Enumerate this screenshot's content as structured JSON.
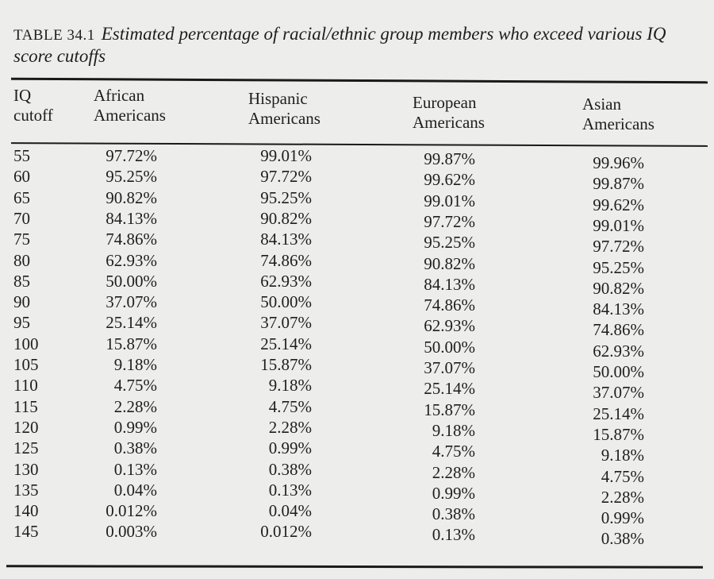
{
  "caption": {
    "label": "TABLE 34.1",
    "title": "Estimated percentage of racial/ethnic group members who exceed various IQ score cutoffs"
  },
  "headers": [
    {
      "line1": "IQ",
      "line2": "cutoff"
    },
    {
      "line1": "African",
      "line2": "Americans"
    },
    {
      "line1": "Hispanic",
      "line2": "Americans"
    },
    {
      "line1": "European",
      "line2": "Americans"
    },
    {
      "line1": "Asian",
      "line2": "Americans"
    }
  ],
  "rows": [
    [
      "55",
      "97.72%",
      "99.01%",
      "99.87%",
      "99.96%"
    ],
    [
      "60",
      "95.25%",
      "97.72%",
      "99.62%",
      "99.87%"
    ],
    [
      "65",
      "90.82%",
      "95.25%",
      "99.01%",
      "99.62%"
    ],
    [
      "70",
      "84.13%",
      "90.82%",
      "97.72%",
      "99.01%"
    ],
    [
      "75",
      "74.86%",
      "84.13%",
      "95.25%",
      "97.72%"
    ],
    [
      "80",
      "62.93%",
      "74.86%",
      "90.82%",
      "95.25%"
    ],
    [
      "85",
      "50.00%",
      "62.93%",
      "84.13%",
      "90.82%"
    ],
    [
      "90",
      "37.07%",
      "50.00%",
      "74.86%",
      "84.13%"
    ],
    [
      "95",
      "25.14%",
      "37.07%",
      "62.93%",
      "74.86%"
    ],
    [
      "100",
      "15.87%",
      "25.14%",
      "50.00%",
      "62.93%"
    ],
    [
      "105",
      "9.18%",
      "15.87%",
      "37.07%",
      "50.00%"
    ],
    [
      "110",
      "4.75%",
      "9.18%",
      "25.14%",
      "37.07%"
    ],
    [
      "115",
      "2.28%",
      "4.75%",
      "15.87%",
      "25.14%"
    ],
    [
      "120",
      "0.99%",
      "2.28%",
      "9.18%",
      "15.87%"
    ],
    [
      "125",
      "0.38%",
      "0.99%",
      "4.75%",
      "9.18%"
    ],
    [
      "130",
      "0.13%",
      "0.38%",
      "2.28%",
      "4.75%"
    ],
    [
      "135",
      "0.04%",
      "0.13%",
      "0.99%",
      "2.28%"
    ],
    [
      "140",
      "0.012%",
      "0.04%",
      "0.38%",
      "0.99%"
    ],
    [
      "145",
      "0.003%",
      "0.012%",
      "0.13%",
      "0.38%"
    ]
  ]
}
